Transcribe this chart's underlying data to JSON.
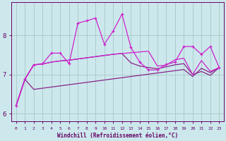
{
  "xlabel": "Windchill (Refroidissement éolien,°C)",
  "x_values": [
    0,
    1,
    2,
    3,
    4,
    5,
    6,
    7,
    8,
    9,
    10,
    11,
    12,
    13,
    14,
    15,
    16,
    17,
    18,
    19,
    20,
    21,
    22,
    23
  ],
  "line1_y": [
    6.2,
    6.88,
    6.62,
    6.65,
    6.68,
    6.71,
    6.74,
    6.77,
    6.8,
    6.83,
    6.86,
    6.89,
    6.92,
    6.95,
    6.98,
    7.01,
    7.04,
    7.07,
    7.1,
    7.13,
    6.95,
    7.16,
    7.05,
    7.18
  ],
  "line2_y": [
    6.2,
    6.88,
    7.25,
    7.27,
    7.32,
    7.35,
    7.37,
    7.4,
    7.43,
    7.46,
    7.49,
    7.52,
    7.54,
    7.3,
    7.22,
    7.18,
    7.15,
    7.2,
    7.25,
    7.28,
    7.0,
    7.08,
    6.98,
    7.18
  ],
  "line3_y": [
    6.2,
    6.88,
    7.25,
    7.27,
    7.32,
    7.35,
    7.37,
    7.4,
    7.43,
    7.46,
    7.49,
    7.52,
    7.54,
    7.56,
    7.58,
    7.6,
    7.22,
    7.24,
    7.38,
    7.42,
    7.0,
    7.36,
    7.08,
    7.18
  ],
  "line4_y": [
    6.2,
    6.88,
    7.25,
    7.28,
    7.55,
    7.55,
    7.28,
    8.32,
    8.38,
    8.45,
    7.78,
    8.12,
    8.55,
    7.7,
    7.32,
    7.12,
    7.12,
    7.26,
    7.32,
    7.72,
    7.72,
    7.52,
    7.72,
    7.18
  ],
  "color_dark": "#882288",
  "color_bright": "#cc22cc",
  "ylim": [
    5.8,
    8.85
  ],
  "xlim": [
    -0.5,
    23.5
  ],
  "yticks": [
    6,
    7,
    8
  ],
  "xticks": [
    0,
    1,
    2,
    3,
    4,
    5,
    6,
    7,
    8,
    9,
    10,
    11,
    12,
    13,
    14,
    15,
    16,
    17,
    18,
    19,
    20,
    21,
    22,
    23
  ],
  "bg_color": "#cce8ec",
  "grid_color": "#aacccc",
  "tick_color": "#660066",
  "label_color": "#660066"
}
